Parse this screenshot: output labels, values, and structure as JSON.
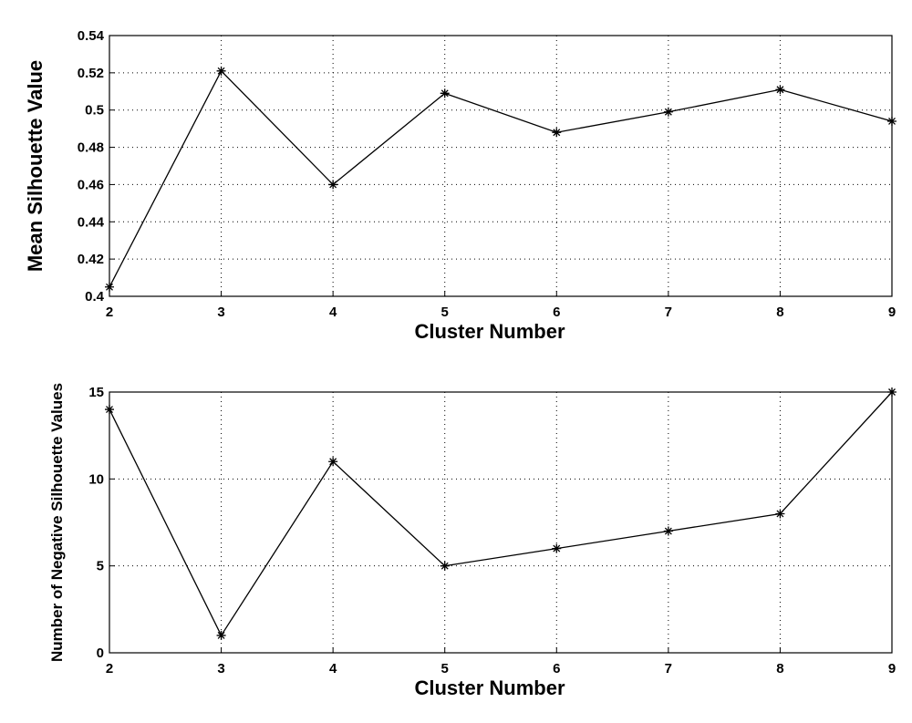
{
  "chart_data": [
    {
      "type": "line",
      "x": [
        2,
        3,
        4,
        5,
        6,
        7,
        8,
        9
      ],
      "series": [
        {
          "color": "#000000",
          "values": [
            0.405,
            0.521,
            0.46,
            0.509,
            0.488,
            0.499,
            0.511,
            0.494
          ]
        }
      ],
      "xlabel": "Cluster Number",
      "ylabel": "Mean Silhouette Value",
      "xlim": [
        2,
        9
      ],
      "xticks": [
        2,
        3,
        4,
        5,
        6,
        7,
        8,
        9
      ],
      "ylim": [
        0.4,
        0.54
      ],
      "yticks": [
        0.4,
        0.42,
        0.44,
        0.46,
        0.48,
        0.5,
        0.52,
        0.54
      ],
      "grid": true
    },
    {
      "type": "line",
      "x": [
        2,
        3,
        4,
        5,
        6,
        7,
        8,
        9
      ],
      "series": [
        {
          "color": "#000000",
          "values": [
            14,
            1,
            11,
            5,
            6,
            7,
            8,
            15
          ]
        }
      ],
      "xlabel": "Cluster Number",
      "ylabel": "Number of Negative Silhouette Values",
      "xlim": [
        2,
        9
      ],
      "xticks": [
        2,
        3,
        4,
        5,
        6,
        7,
        8,
        9
      ],
      "ylim": [
        0,
        15
      ],
      "yticks": [
        0,
        5,
        10,
        15
      ],
      "grid": true
    }
  ]
}
